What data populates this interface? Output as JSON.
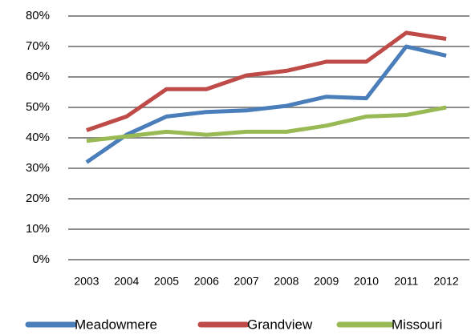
{
  "chart_data": {
    "type": "line",
    "categories": [
      "2003",
      "2004",
      "2005",
      "2006",
      "2007",
      "2008",
      "2009",
      "2010",
      "2011",
      "2012"
    ],
    "series": [
      {
        "name": "Meadowmere",
        "color": "#4a7ebb",
        "values": [
          32,
          41,
          47,
          48.5,
          49,
          50.5,
          53.5,
          53,
          70,
          67
        ]
      },
      {
        "name": "Grandview",
        "color": "#be4b48",
        "values": [
          42.5,
          47,
          56,
          56,
          60.5,
          62,
          65,
          65,
          74.5,
          72.5
        ]
      },
      {
        "name": "Missouri",
        "color": "#98b954",
        "values": [
          39,
          40.5,
          42,
          41,
          42,
          42,
          44,
          47,
          47.5,
          50
        ]
      }
    ],
    "ylim": [
      0,
      80
    ],
    "yticks": [
      {
        "value": 0,
        "label": "0%"
      },
      {
        "value": 10,
        "label": "10%"
      },
      {
        "value": 20,
        "label": "20%"
      },
      {
        "value": 30,
        "label": "30%"
      },
      {
        "value": 40,
        "label": "40%"
      },
      {
        "value": 50,
        "label": "50%"
      },
      {
        "value": 60,
        "label": "60%"
      },
      {
        "value": 70,
        "label": "70%"
      },
      {
        "value": 80,
        "label": "80%"
      }
    ],
    "grid": true,
    "legend": "bottom"
  }
}
